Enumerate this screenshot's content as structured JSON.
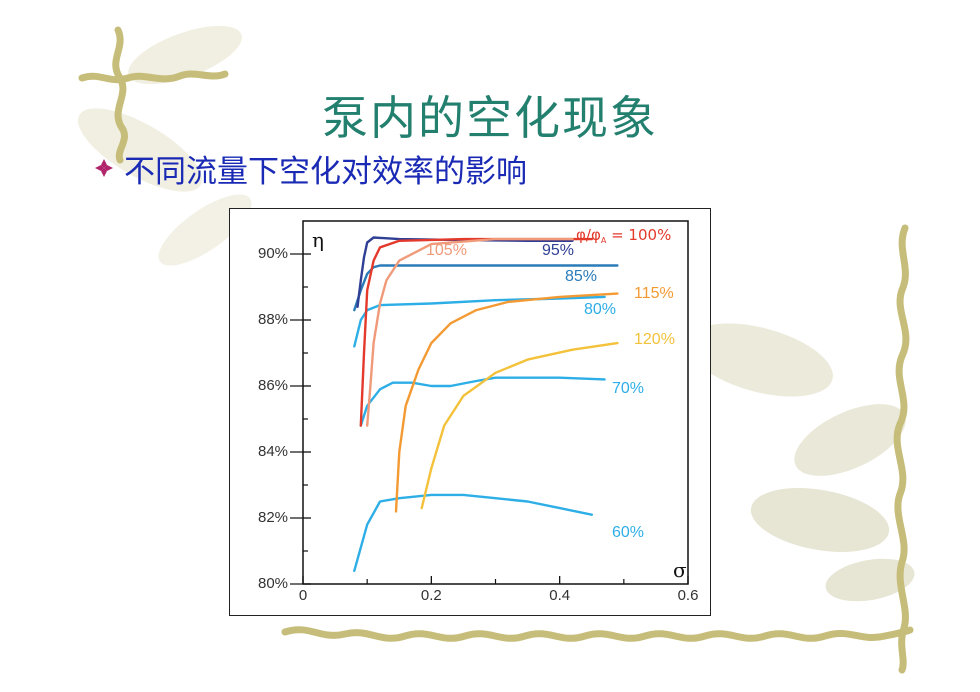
{
  "slide": {
    "title": "泵内的空化现象",
    "bullet_text": "不同流量下空化对效率的影响",
    "bullet_icon": "diamond-bullet-icon",
    "colors": {
      "title": "#23806f",
      "bullet_text": "#1a2ab5",
      "bullet_icon": "#b0246b"
    }
  },
  "chart_data": {
    "type": "line",
    "title": "",
    "xlabel": "σ",
    "ylabel": "η",
    "xlim": [
      0,
      0.6
    ],
    "ylim": [
      80,
      91
    ],
    "x_ticks": [
      "0",
      "0.2",
      "0.4",
      "0.6"
    ],
    "y_ticks": [
      "80%",
      "82%",
      "84%",
      "86%",
      "88%",
      "90%"
    ],
    "series_label_prefix": "φ/φ",
    "series_label_subscript": "A",
    "series_label_suffix": " = 100%",
    "series": [
      {
        "name": "60%",
        "color": "#2eaee6",
        "points": [
          [
            0.08,
            80.4
          ],
          [
            0.1,
            81.8
          ],
          [
            0.12,
            82.5
          ],
          [
            0.15,
            82.6
          ],
          [
            0.2,
            82.7
          ],
          [
            0.25,
            82.7
          ],
          [
            0.3,
            82.6
          ],
          [
            0.35,
            82.5
          ],
          [
            0.4,
            82.3
          ],
          [
            0.45,
            82.1
          ]
        ]
      },
      {
        "name": "70%",
        "color": "#2eaee6",
        "points": [
          [
            0.09,
            84.8
          ],
          [
            0.1,
            85.4
          ],
          [
            0.12,
            85.9
          ],
          [
            0.14,
            86.1
          ],
          [
            0.17,
            86.1
          ],
          [
            0.2,
            86.0
          ],
          [
            0.23,
            86.0
          ],
          [
            0.27,
            86.15
          ],
          [
            0.3,
            86.25
          ],
          [
            0.35,
            86.25
          ],
          [
            0.4,
            86.25
          ],
          [
            0.47,
            86.2
          ]
        ]
      },
      {
        "name": "80%",
        "color": "#2eaee6",
        "points": [
          [
            0.08,
            87.2
          ],
          [
            0.09,
            88.0
          ],
          [
            0.1,
            88.3
          ],
          [
            0.12,
            88.45
          ],
          [
            0.2,
            88.5
          ],
          [
            0.3,
            88.6
          ],
          [
            0.4,
            88.65
          ],
          [
            0.47,
            88.7
          ]
        ]
      },
      {
        "name": "85%",
        "color": "#2a7bb8",
        "points": [
          [
            0.08,
            88.3
          ],
          [
            0.09,
            88.9
          ],
          [
            0.1,
            89.4
          ],
          [
            0.11,
            89.6
          ],
          [
            0.12,
            89.65
          ],
          [
            0.3,
            89.65
          ],
          [
            0.49,
            89.65
          ]
        ]
      },
      {
        "name": "95%",
        "color": "#2f3f94",
        "points": [
          [
            0.085,
            88.4
          ],
          [
            0.09,
            89.2
          ],
          [
            0.095,
            89.9
          ],
          [
            0.1,
            90.35
          ],
          [
            0.11,
            90.5
          ],
          [
            0.15,
            90.45
          ],
          [
            0.25,
            90.42
          ],
          [
            0.35,
            90.4
          ],
          [
            0.42,
            90.4
          ]
        ]
      },
      {
        "name": "100%",
        "color": "#e33a2c",
        "points": [
          [
            0.09,
            84.8
          ],
          [
            0.095,
            87.0
          ],
          [
            0.1,
            88.9
          ],
          [
            0.11,
            89.8
          ],
          [
            0.12,
            90.2
          ],
          [
            0.15,
            90.4
          ],
          [
            0.25,
            90.45
          ],
          [
            0.35,
            90.45
          ],
          [
            0.45,
            90.45
          ]
        ]
      },
      {
        "name": "105%",
        "color": "#f09a7a",
        "points": [
          [
            0.1,
            84.8
          ],
          [
            0.105,
            86.0
          ],
          [
            0.11,
            87.3
          ],
          [
            0.12,
            88.5
          ],
          [
            0.13,
            89.2
          ],
          [
            0.15,
            89.8
          ],
          [
            0.2,
            90.3
          ],
          [
            0.3,
            90.45
          ],
          [
            0.42,
            90.45
          ]
        ]
      },
      {
        "name": "115%",
        "color": "#f39a33",
        "points": [
          [
            0.145,
            82.2
          ],
          [
            0.15,
            84.0
          ],
          [
            0.16,
            85.4
          ],
          [
            0.18,
            86.5
          ],
          [
            0.2,
            87.3
          ],
          [
            0.23,
            87.9
          ],
          [
            0.27,
            88.3
          ],
          [
            0.32,
            88.55
          ],
          [
            0.4,
            88.7
          ],
          [
            0.49,
            88.8
          ]
        ]
      },
      {
        "name": "120%",
        "color": "#f3c23a",
        "points": [
          [
            0.185,
            82.3
          ],
          [
            0.2,
            83.5
          ],
          [
            0.22,
            84.8
          ],
          [
            0.25,
            85.7
          ],
          [
            0.3,
            86.4
          ],
          [
            0.35,
            86.8
          ],
          [
            0.42,
            87.1
          ],
          [
            0.49,
            87.3
          ]
        ]
      }
    ],
    "series_labels": [
      "60%",
      "70%",
      "80%",
      "85%",
      "95%",
      "105%",
      "115%",
      "120%"
    ]
  }
}
